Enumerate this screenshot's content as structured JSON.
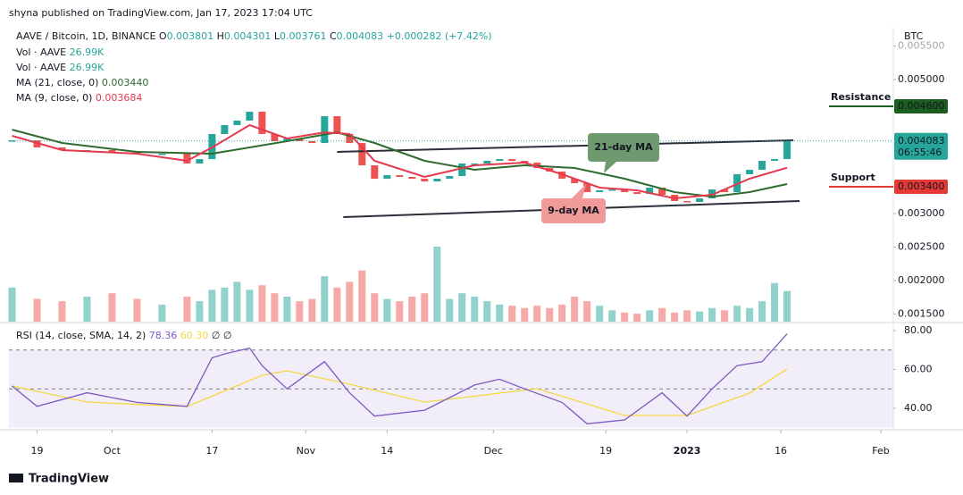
{
  "header": {
    "published": "shyna published on TradingView.com, Jan 17, 2023 17:04 UTC",
    "brand": "TradingView",
    "currency": "BTC"
  },
  "chart_data": {
    "type": "candlestick",
    "title": "AAVE / Bitcoin, 1D, BINANCE",
    "ohlc": [
      {
        "label": "O",
        "value": "0.003801"
      },
      {
        "label": "H",
        "value": "0.004301"
      },
      {
        "label": "L",
        "value": "0.003761"
      },
      {
        "label": "C",
        "value": "0.004083"
      },
      {
        "label": "",
        "value": "+0.000282 (+7.42%)"
      }
    ],
    "up_color": "#26a69a",
    "down_color": "#ef5350",
    "x": [
      0,
      4,
      8,
      12,
      16,
      20,
      24,
      28,
      30,
      32,
      34,
      36,
      38,
      40,
      42,
      44,
      46,
      48,
      50,
      52,
      54,
      56,
      58,
      60,
      62,
      64,
      66,
      68,
      70,
      72,
      74,
      76,
      78,
      80,
      82,
      84,
      86,
      88,
      90,
      92,
      94,
      96,
      98,
      100,
      102,
      104,
      106,
      108,
      110,
      112,
      114,
      116,
      118,
      120,
      122,
      124
    ],
    "close": [
      0.004093,
      0.003987,
      0.003947,
      0.003947,
      0.00392,
      0.003893,
      0.003893,
      0.003747,
      0.003813,
      0.004187,
      0.00432,
      0.004387,
      0.00452,
      0.004187,
      0.00408,
      0.00412,
      0.00408,
      0.004053,
      0.004453,
      0.004187,
      0.004053,
      0.00372,
      0.00352,
      0.003573,
      0.003547,
      0.00352,
      0.00348,
      0.00352,
      0.00356,
      0.003747,
      0.003747,
      0.003787,
      0.003813,
      0.003787,
      0.00376,
      0.00368,
      0.003627,
      0.00352,
      0.003453,
      0.00332,
      0.003347,
      0.00336,
      0.00332,
      0.003293,
      0.003387,
      0.00328,
      0.003187,
      0.003173,
      0.003227,
      0.00336,
      0.00332,
      0.003587,
      0.003653,
      0.003787,
      0.003813,
      0.004083
    ],
    "xlim": [
      -0.5,
      141
    ],
    "xticks": [
      {
        "value": 4,
        "label": "19"
      },
      {
        "value": 16,
        "label": "Oct"
      },
      {
        "value": 32,
        "label": "17"
      },
      {
        "value": 47,
        "label": "Nov"
      },
      {
        "value": 60,
        "label": "14"
      },
      {
        "value": 77,
        "label": "Dec"
      },
      {
        "value": 95,
        "label": "19"
      },
      {
        "value": 108,
        "label": "2023"
      },
      {
        "value": 123,
        "label": "16"
      },
      {
        "value": 139,
        "label": "Feb"
      }
    ],
    "ylim": [
      0.001387,
      0.005787
    ],
    "yticks": [
      {
        "value": 0.0015,
        "label": "0.001500"
      },
      {
        "value": 0.002,
        "label": "0.002000"
      },
      {
        "value": 0.0025,
        "label": "0.002500"
      },
      {
        "value": 0.003,
        "label": "0.003000"
      },
      {
        "value": 0.005,
        "label": "0.005000"
      },
      {
        "value": 0.0055,
        "label": "0.005500"
      }
    ],
    "price_tag": {
      "value": 0.004083,
      "label": "0.004083",
      "countdown": "06:55:46",
      "color": "#26a69a"
    },
    "volume": {
      "name": "Vol · AAVE",
      "value_label": "26.99K",
      "lim": [
        0,
        110
      ],
      "values": [
        30,
        20,
        18,
        22,
        25,
        20,
        15,
        22,
        18,
        28,
        30,
        35,
        28,
        32,
        25,
        22,
        18,
        20,
        40,
        30,
        35,
        45,
        25,
        20,
        18,
        22,
        25,
        66,
        20,
        25,
        22,
        18,
        15,
        14,
        12,
        14,
        12,
        15,
        22,
        18,
        14,
        10,
        8,
        7,
        10,
        12,
        8,
        10,
        9,
        12,
        10,
        14,
        12,
        18,
        34,
        26.99
      ]
    },
    "ma": [
      {
        "name": "MA (21, close, 0)",
        "value_label": "0.003440",
        "color": "#2e6b30",
        "x": [
          0,
          8,
          20,
          32,
          44,
          52,
          58,
          66,
          74,
          82,
          90,
          98,
          106,
          112,
          118,
          124
        ],
        "values": [
          0.004253,
          0.004053,
          0.00392,
          0.003893,
          0.00408,
          0.004213,
          0.004053,
          0.003787,
          0.003653,
          0.00372,
          0.00368,
          0.00352,
          0.00332,
          0.003253,
          0.00332,
          0.00344
        ]
      },
      {
        "name": "MA (9, close, 0)",
        "value_label": "0.003684",
        "color": "#e53950",
        "x": [
          0,
          8,
          20,
          28,
          32,
          38,
          44,
          50,
          54,
          58,
          66,
          74,
          82,
          88,
          94,
          100,
          106,
          112,
          118,
          124
        ],
        "values": [
          0.00416,
          0.003947,
          0.003893,
          0.003787,
          0.003987,
          0.00432,
          0.00412,
          0.004213,
          0.004187,
          0.003787,
          0.003547,
          0.00372,
          0.00376,
          0.003587,
          0.003387,
          0.003347,
          0.003227,
          0.00328,
          0.00352,
          0.003684
        ]
      }
    ],
    "trendlines": [
      {
        "x": [
          52,
          125
        ],
        "values": [
          0.00392,
          0.004093
        ]
      },
      {
        "x": [
          53,
          126
        ],
        "values": [
          0.002947,
          0.003187
        ]
      }
    ],
    "levels": [
      {
        "text": "Resistance",
        "value": 0.0046,
        "label": "0.004600",
        "text_color": "#c62828",
        "color": "#1b5e20"
      },
      {
        "text": "Support",
        "value": 0.0034,
        "label": "0.003400",
        "text_color": "#1b5e20",
        "color": "#e53935"
      }
    ],
    "callouts": [
      {
        "text": "21-day MA",
        "color": "#6f9a6f"
      },
      {
        "text": "9-day MA",
        "color": "#f09a9a"
      }
    ],
    "rsi": {
      "name": "RSI (14, close, SMA, 14, 2)",
      "value_label": "78.36",
      "sma_label": "60.30",
      "extra": [
        "∅",
        "∅"
      ],
      "color": "#7e57c2",
      "sma_color": "#f5d742",
      "ylim": [
        29.4,
        83.7
      ],
      "yticks": [
        {
          "value": 40,
          "label": "40.00"
        },
        {
          "value": 60,
          "label": "60.00"
        },
        {
          "value": 80,
          "label": "80.00"
        }
      ],
      "band": [
        30,
        70
      ],
      "midline": 50,
      "x": [
        0,
        4,
        12,
        20,
        28,
        32,
        34,
        38,
        40,
        44,
        50,
        54,
        58,
        66,
        74,
        78,
        82,
        88,
        92,
        98,
        104,
        108,
        112,
        116,
        120,
        124
      ],
      "values": [
        51.5,
        41,
        48,
        43,
        41,
        66,
        68,
        71,
        62,
        50,
        64,
        48,
        36,
        39,
        52,
        55,
        50,
        43,
        32,
        34,
        48,
        36,
        50,
        62,
        64,
        78.36
      ],
      "sma_x": [
        0,
        12,
        28,
        40,
        44,
        54,
        66,
        78,
        84,
        98,
        108,
        118,
        124
      ],
      "sma": [
        51.5,
        43.2,
        40.9,
        57,
        59.3,
        52.4,
        43.2,
        47.8,
        50.1,
        36.3,
        36.3,
        47.8,
        60.3
      ]
    }
  }
}
